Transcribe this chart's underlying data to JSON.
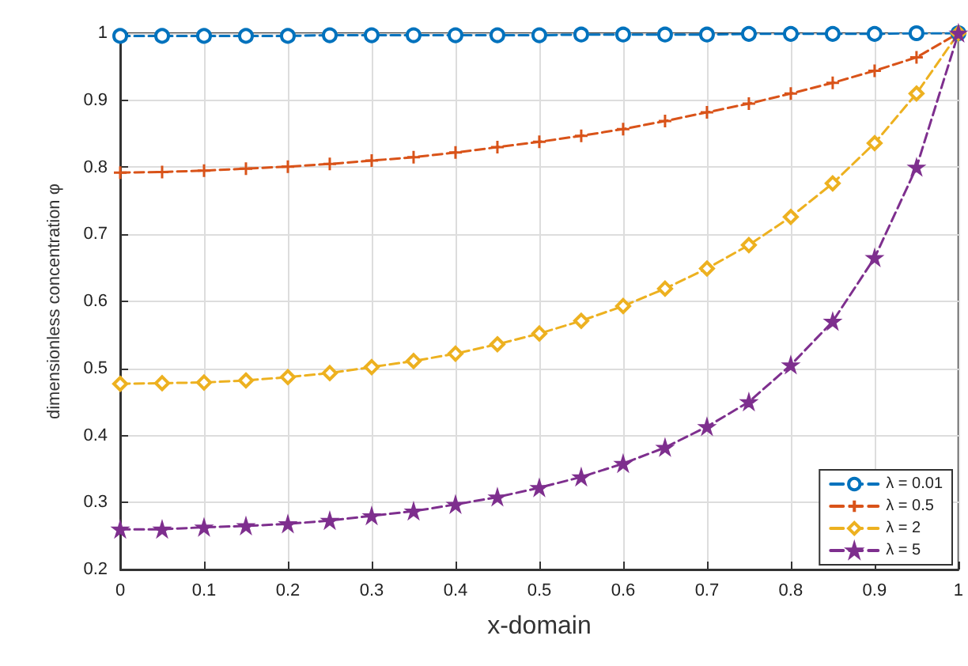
{
  "chart_data": {
    "type": "line",
    "xlabel": "x-domain",
    "ylabel": "dimensionless concentration φ",
    "x": [
      0,
      0.05,
      0.1,
      0.15,
      0.2,
      0.25,
      0.3,
      0.35,
      0.4,
      0.45,
      0.5,
      0.55,
      0.6,
      0.65,
      0.7,
      0.75,
      0.8,
      0.85,
      0.9,
      0.95,
      1
    ],
    "series": [
      {
        "name": "λ = 0.01",
        "color": "#0072bd",
        "marker": "circle",
        "values": [
          0.996,
          0.996,
          0.996,
          0.996,
          0.996,
          0.997,
          0.997,
          0.997,
          0.997,
          0.997,
          0.997,
          0.998,
          0.998,
          0.998,
          0.998,
          0.999,
          0.999,
          0.999,
          0.999,
          1.0,
          1.0
        ]
      },
      {
        "name": "λ = 0.5",
        "color": "#d95319",
        "marker": "cross",
        "values": [
          0.792,
          0.793,
          0.795,
          0.798,
          0.801,
          0.805,
          0.81,
          0.815,
          0.822,
          0.83,
          0.838,
          0.847,
          0.857,
          0.869,
          0.882,
          0.895,
          0.91,
          0.926,
          0.944,
          0.964,
          1.0
        ]
      },
      {
        "name": "λ = 2",
        "color": "#edb120",
        "marker": "diamond",
        "values": [
          0.477,
          0.478,
          0.479,
          0.482,
          0.487,
          0.493,
          0.502,
          0.511,
          0.522,
          0.536,
          0.552,
          0.571,
          0.593,
          0.619,
          0.649,
          0.684,
          0.726,
          0.776,
          0.836,
          0.91,
          1.0
        ]
      },
      {
        "name": "λ = 5",
        "color": "#7e2f8e",
        "marker": "star",
        "values": [
          0.26,
          0.26,
          0.263,
          0.265,
          0.268,
          0.273,
          0.28,
          0.287,
          0.297,
          0.308,
          0.322,
          0.338,
          0.358,
          0.382,
          0.413,
          0.45,
          0.505,
          0.57,
          0.665,
          0.8,
          1.0
        ]
      }
    ],
    "xlim": [
      0,
      1
    ],
    "xticks": [
      0,
      0.1,
      0.2,
      0.3,
      0.4,
      0.5,
      0.6,
      0.7,
      0.8,
      0.9,
      1
    ],
    "ylim": [
      0.2,
      1
    ],
    "yticks": [
      0.2,
      0.3,
      0.4,
      0.5,
      0.6,
      0.7,
      0.8,
      0.9,
      1
    ],
    "grid": true,
    "legend": "bottom right",
    "line_style": "dashed"
  }
}
